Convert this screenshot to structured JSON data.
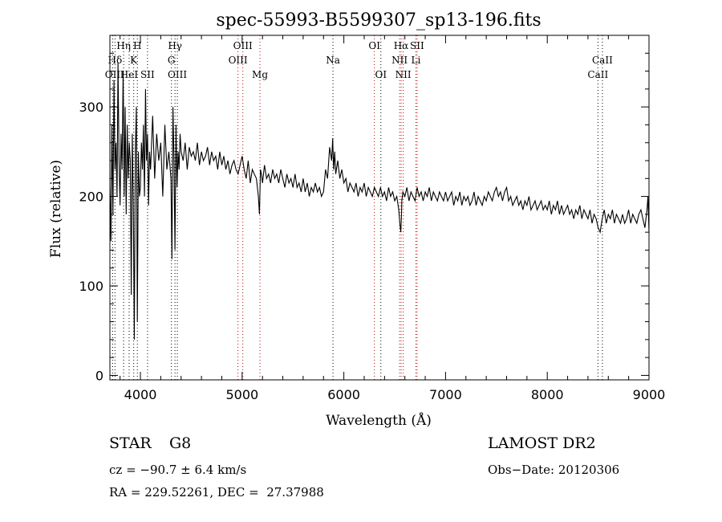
{
  "chart_data": {
    "type": "line",
    "title": "spec-55993-B5599307_sp13-196.fits",
    "xlabel": "Wavelength (Å)",
    "ylabel": "Flux (relative)",
    "xlim": [
      3700,
      9000
    ],
    "ylim": [
      -5,
      380
    ],
    "x_ticks": [
      4000,
      5000,
      6000,
      7000,
      8000,
      9000
    ],
    "y_ticks": [
      0,
      100,
      200,
      300
    ],
    "grid": false,
    "series": [
      {
        "x": [
          3700,
          3710,
          3720,
          3730,
          3740,
          3750,
          3760,
          3770,
          3780,
          3790,
          3800,
          3810,
          3820,
          3830,
          3840,
          3850,
          3860,
          3870,
          3880,
          3890,
          3900,
          3910,
          3920,
          3930,
          3940,
          3950,
          3960,
          3970,
          3980,
          3990,
          4000,
          4010,
          4020,
          4030,
          4040,
          4050,
          4060,
          4070,
          4080,
          4090,
          4100,
          4120,
          4140,
          4160,
          4180,
          4200,
          4220,
          4240,
          4260,
          4280,
          4300,
          4310,
          4320,
          4330,
          4340,
          4350,
          4360,
          4370,
          4380,
          4390,
          4400,
          4420,
          4440,
          4460,
          4480,
          4500,
          4520,
          4540,
          4560,
          4580,
          4600,
          4620,
          4640,
          4660,
          4680,
          4700,
          4720,
          4740,
          4760,
          4780,
          4800,
          4820,
          4840,
          4860,
          4880,
          4900,
          4920,
          4940,
          4960,
          4980,
          5000,
          5020,
          5040,
          5060,
          5080,
          5100,
          5120,
          5140,
          5160,
          5170,
          5180,
          5190,
          5200,
          5220,
          5240,
          5260,
          5280,
          5300,
          5320,
          5340,
          5360,
          5380,
          5400,
          5420,
          5440,
          5460,
          5480,
          5500,
          5520,
          5540,
          5560,
          5580,
          5600,
          5620,
          5640,
          5660,
          5680,
          5700,
          5720,
          5740,
          5760,
          5780,
          5800,
          5820,
          5840,
          5860,
          5880,
          5890,
          5900,
          5910,
          5920,
          5940,
          5960,
          5980,
          6000,
          6020,
          6040,
          6060,
          6080,
          6100,
          6120,
          6140,
          6160,
          6180,
          6200,
          6220,
          6240,
          6260,
          6280,
          6300,
          6320,
          6340,
          6360,
          6380,
          6400,
          6420,
          6440,
          6460,
          6480,
          6500,
          6520,
          6540,
          6550,
          6560,
          6565,
          6570,
          6580,
          6600,
          6620,
          6640,
          6660,
          6680,
          6700,
          6720,
          6740,
          6760,
          6780,
          6800,
          6820,
          6840,
          6860,
          6880,
          6900,
          6920,
          6940,
          6960,
          6980,
          7000,
          7020,
          7040,
          7060,
          7080,
          7100,
          7120,
          7140,
          7160,
          7180,
          7200,
          7220,
          7240,
          7260,
          7280,
          7300,
          7320,
          7340,
          7360,
          7380,
          7400,
          7420,
          7440,
          7460,
          7480,
          7500,
          7520,
          7540,
          7560,
          7580,
          7600,
          7620,
          7640,
          7660,
          7680,
          7700,
          7720,
          7740,
          7760,
          7780,
          7800,
          7820,
          7840,
          7860,
          7880,
          7900,
          7920,
          7940,
          7960,
          7980,
          8000,
          8020,
          8040,
          8060,
          8080,
          8100,
          8120,
          8140,
          8160,
          8180,
          8200,
          8220,
          8240,
          8260,
          8280,
          8300,
          8320,
          8340,
          8360,
          8380,
          8400,
          8420,
          8440,
          8460,
          8480,
          8500,
          8520,
          8540,
          8560,
          8580,
          8600,
          8620,
          8640,
          8660,
          8680,
          8700,
          8720,
          8740,
          8760,
          8780,
          8800,
          8820,
          8840,
          8860,
          8880,
          8900,
          8920,
          8940,
          8960,
          8980,
          8990,
          9000
        ],
        "y": [
          210,
          150,
          280,
          180,
          330,
          230,
          260,
          200,
          350,
          240,
          190,
          270,
          230,
          340,
          200,
          300,
          180,
          280,
          220,
          260,
          240,
          90,
          270,
          190,
          40,
          250,
          300,
          60,
          250,
          200,
          210,
          260,
          230,
          280,
          200,
          320,
          240,
          270,
          190,
          250,
          230,
          290,
          220,
          270,
          240,
          260,
          200,
          280,
          230,
          250,
          220,
          130,
          300,
          240,
          140,
          280,
          210,
          250,
          230,
          270,
          250,
          240,
          260,
          230,
          255,
          245,
          250,
          240,
          260,
          235,
          250,
          240,
          245,
          255,
          235,
          250,
          240,
          245,
          230,
          250,
          235,
          245,
          230,
          240,
          225,
          235,
          240,
          230,
          225,
          235,
          245,
          230,
          220,
          240,
          215,
          230,
          225,
          220,
          200,
          180,
          230,
          225,
          215,
          235,
          220,
          225,
          215,
          230,
          220,
          225,
          215,
          230,
          220,
          210,
          225,
          215,
          220,
          210,
          225,
          210,
          215,
          205,
          220,
          205,
          215,
          200,
          210,
          205,
          215,
          205,
          210,
          200,
          205,
          230,
          220,
          255,
          240,
          265,
          230,
          250,
          225,
          240,
          220,
          230,
          215,
          220,
          205,
          215,
          210,
          205,
          215,
          200,
          210,
          205,
          215,
          200,
          210,
          205,
          200,
          210,
          205,
          200,
          210,
          200,
          205,
          195,
          210,
          200,
          205,
          195,
          200,
          185,
          170,
          160,
          175,
          195,
          205,
          200,
          210,
          195,
          205,
          200,
          195,
          210,
          200,
          205,
          195,
          205,
          200,
          210,
          195,
          205,
          200,
          195,
          205,
          200,
          195,
          205,
          195,
          200,
          205,
          190,
          200,
          195,
          205,
          190,
          200,
          195,
          200,
          190,
          195,
          205,
          190,
          200,
          195,
          190,
          200,
          195,
          205,
          200,
          195,
          205,
          210,
          200,
          205,
          195,
          205,
          210,
          195,
          200,
          190,
          195,
          200,
          190,
          195,
          185,
          195,
          190,
          200,
          185,
          190,
          195,
          185,
          190,
          195,
          185,
          190,
          185,
          195,
          180,
          190,
          185,
          195,
          180,
          190,
          180,
          185,
          190,
          180,
          185,
          175,
          185,
          180,
          190,
          175,
          185,
          180,
          175,
          185,
          170,
          180,
          175,
          165,
          160,
          175,
          185,
          170,
          180,
          175,
          185,
          170,
          180,
          175,
          170,
          180,
          170,
          175,
          185,
          170,
          180,
          175,
          170,
          180,
          185,
          175,
          165,
          185,
          200,
          160
        ]
      }
    ],
    "line_labels": [
      {
        "label": "Hη",
        "x": 3835,
        "row": 0
      },
      {
        "label": "H",
        "x": 3970,
        "row": 0
      },
      {
        "label": "Hγ",
        "x": 4340,
        "row": 0
      },
      {
        "label": "OIII",
        "x": 5007,
        "row": 0
      },
      {
        "label": "OI",
        "x": 6300,
        "row": 0
      },
      {
        "label": "Hα",
        "x": 6563,
        "row": 0
      },
      {
        "label": "SII",
        "x": 6720,
        "row": 0
      },
      {
        "label": "Hδ",
        "x": 3750,
        "row": 1
      },
      {
        "label": "K",
        "x": 3934,
        "row": 1
      },
      {
        "label": "G",
        "x": 4305,
        "row": 1
      },
      {
        "label": "OIII",
        "x": 4959,
        "row": 1
      },
      {
        "label": "Na",
        "x": 5893,
        "row": 1
      },
      {
        "label": "NII",
        "x": 6548,
        "row": 1
      },
      {
        "label": "Li",
        "x": 6708,
        "row": 1
      },
      {
        "label": "CaII",
        "x": 8542,
        "row": 1
      },
      {
        "label": "OII",
        "x": 3727,
        "row": 2
      },
      {
        "label": "HeI",
        "x": 3889,
        "row": 2
      },
      {
        "label": "SII",
        "x": 4070,
        "row": 2
      },
      {
        "label": "OIII",
        "x": 4363,
        "row": 2
      },
      {
        "label": "Mg",
        "x": 5175,
        "row": 2
      },
      {
        "label": "OI",
        "x": 6364,
        "row": 2
      },
      {
        "label": "NII",
        "x": 6584,
        "row": 2
      },
      {
        "label": "CaII",
        "x": 8498,
        "row": 2
      }
    ],
    "line_markers": [
      {
        "x": 3727,
        "color": "#000000"
      },
      {
        "x": 3750,
        "color": "#000000"
      },
      {
        "x": 3835,
        "color": "#000000"
      },
      {
        "x": 3889,
        "color": "#000000"
      },
      {
        "x": 3934,
        "color": "#000000"
      },
      {
        "x": 3970,
        "color": "#000000"
      },
      {
        "x": 4070,
        "color": "#000000"
      },
      {
        "x": 4305,
        "color": "#000000"
      },
      {
        "x": 4340,
        "color": "#000000"
      },
      {
        "x": 4363,
        "color": "#000000"
      },
      {
        "x": 4959,
        "color": "#c00000"
      },
      {
        "x": 5007,
        "color": "#c00000"
      },
      {
        "x": 5175,
        "color": "#c00000"
      },
      {
        "x": 5893,
        "color": "#000000"
      },
      {
        "x": 6300,
        "color": "#c00000"
      },
      {
        "x": 6364,
        "color": "#000000"
      },
      {
        "x": 6548,
        "color": "#c00000"
      },
      {
        "x": 6563,
        "color": "#c00000"
      },
      {
        "x": 6584,
        "color": "#c00000"
      },
      {
        "x": 6708,
        "color": "#c00000"
      },
      {
        "x": 6720,
        "color": "#c00000"
      },
      {
        "x": 8498,
        "color": "#000000"
      },
      {
        "x": 8542,
        "color": "#000000"
      }
    ]
  },
  "info": {
    "class_label": "STAR",
    "subclass_label": "G8",
    "survey": "LAMOST DR2",
    "redshift": "cz = −90.7 ± 6.4 km/s",
    "obs_date": "Obs−Date: 20120306",
    "coords": "RA = 229.52261, DEC =  27.37988"
  }
}
